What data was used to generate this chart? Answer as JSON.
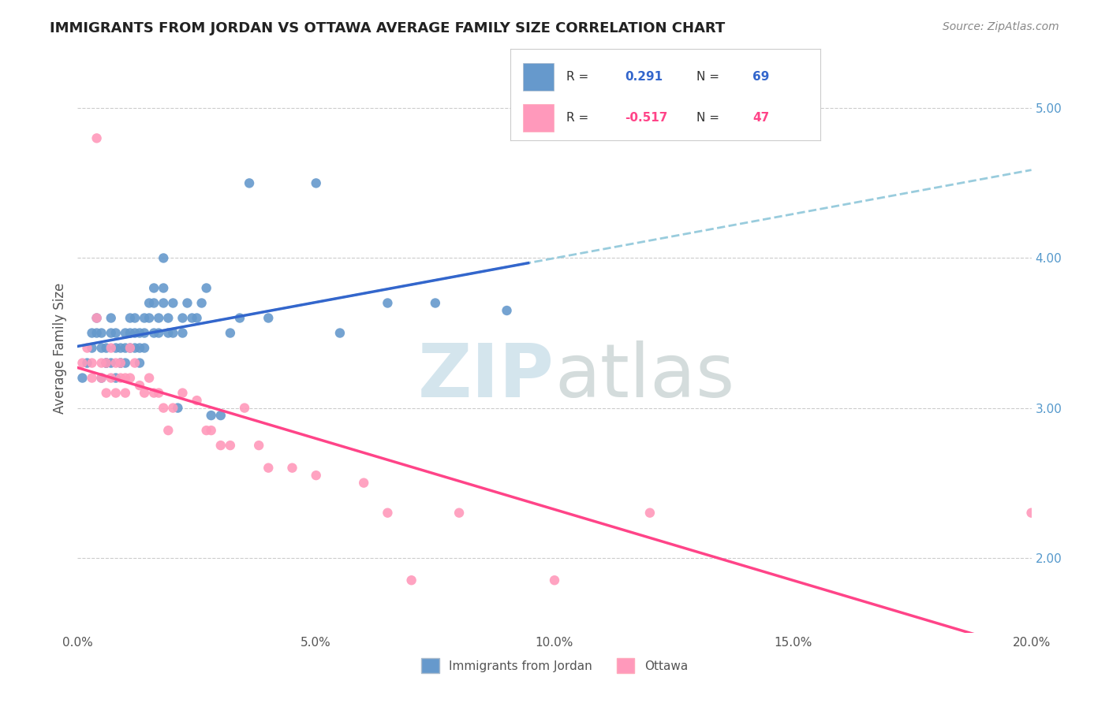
{
  "title": "IMMIGRANTS FROM JORDAN VS OTTAWA AVERAGE FAMILY SIZE CORRELATION CHART",
  "source": "Source: ZipAtlas.com",
  "ylabel": "Average Family Size",
  "xlabel": "",
  "legend_label_blue": "Immigrants from Jordan",
  "legend_label_pink": "Ottawa",
  "legend_R_blue": "R =  0.291",
  "legend_N_blue": "N = 69",
  "legend_R_pink": "R = -0.517",
  "legend_N_pink": "N = 47",
  "xlim": [
    0.0,
    0.2
  ],
  "ylim_left": [
    1.5,
    5.3
  ],
  "ylim_right": [
    1.5,
    5.3
  ],
  "right_yticks": [
    2.0,
    3.0,
    4.0,
    5.0
  ],
  "color_blue": "#6699CC",
  "color_pink": "#FF99BB",
  "trendline_blue": "#3366CC",
  "trendline_pink": "#FF4488",
  "trendline_dashed_color": "#99CCDD",
  "background_color": "#FFFFFF",
  "watermark_text": "ZIPatlas",
  "watermark_color_zip": "#AACCDD",
  "watermark_color_atlas": "#BBCCCC",
  "scatter_blue_x": [
    0.001,
    0.002,
    0.003,
    0.003,
    0.004,
    0.004,
    0.005,
    0.005,
    0.005,
    0.006,
    0.006,
    0.006,
    0.007,
    0.007,
    0.007,
    0.008,
    0.008,
    0.008,
    0.009,
    0.009,
    0.009,
    0.01,
    0.01,
    0.01,
    0.011,
    0.011,
    0.011,
    0.012,
    0.012,
    0.012,
    0.013,
    0.013,
    0.013,
    0.014,
    0.014,
    0.014,
    0.015,
    0.015,
    0.016,
    0.016,
    0.016,
    0.017,
    0.017,
    0.018,
    0.018,
    0.018,
    0.019,
    0.019,
    0.02,
    0.02,
    0.021,
    0.022,
    0.022,
    0.023,
    0.024,
    0.025,
    0.026,
    0.027,
    0.028,
    0.03,
    0.032,
    0.034,
    0.036,
    0.04,
    0.05,
    0.055,
    0.065,
    0.075,
    0.09
  ],
  "scatter_blue_y": [
    3.2,
    3.3,
    3.4,
    3.5,
    3.6,
    3.5,
    3.5,
    3.4,
    3.2,
    3.3,
    3.4,
    3.3,
    3.5,
    3.6,
    3.3,
    3.4,
    3.5,
    3.2,
    3.3,
    3.4,
    3.3,
    3.5,
    3.3,
    3.4,
    3.6,
    3.5,
    3.4,
    3.5,
    3.6,
    3.4,
    3.5,
    3.4,
    3.3,
    3.6,
    3.5,
    3.4,
    3.7,
    3.6,
    3.8,
    3.5,
    3.7,
    3.6,
    3.5,
    4.0,
    3.8,
    3.7,
    3.5,
    3.6,
    3.7,
    3.5,
    3.0,
    3.5,
    3.6,
    3.7,
    3.6,
    3.6,
    3.7,
    3.8,
    2.95,
    2.95,
    3.5,
    3.6,
    4.5,
    3.6,
    4.5,
    3.5,
    3.7,
    3.7,
    3.65
  ],
  "scatter_pink_x": [
    0.001,
    0.002,
    0.003,
    0.003,
    0.004,
    0.004,
    0.005,
    0.005,
    0.006,
    0.006,
    0.007,
    0.007,
    0.008,
    0.008,
    0.009,
    0.009,
    0.01,
    0.01,
    0.011,
    0.011,
    0.012,
    0.013,
    0.014,
    0.015,
    0.016,
    0.017,
    0.018,
    0.019,
    0.02,
    0.022,
    0.025,
    0.027,
    0.028,
    0.03,
    0.032,
    0.035,
    0.038,
    0.04,
    0.045,
    0.05,
    0.06,
    0.065,
    0.07,
    0.08,
    0.1,
    0.12,
    0.2
  ],
  "scatter_pink_y": [
    3.3,
    3.4,
    3.2,
    3.3,
    4.8,
    3.6,
    3.3,
    3.2,
    3.3,
    3.1,
    3.4,
    3.2,
    3.3,
    3.1,
    3.2,
    3.3,
    3.2,
    3.1,
    3.4,
    3.2,
    3.3,
    3.15,
    3.1,
    3.2,
    3.1,
    3.1,
    3.0,
    2.85,
    3.0,
    3.1,
    3.05,
    2.85,
    2.85,
    2.75,
    2.75,
    3.0,
    2.75,
    2.6,
    2.6,
    2.55,
    2.5,
    2.3,
    1.85,
    2.3,
    1.85,
    2.3,
    2.3
  ]
}
